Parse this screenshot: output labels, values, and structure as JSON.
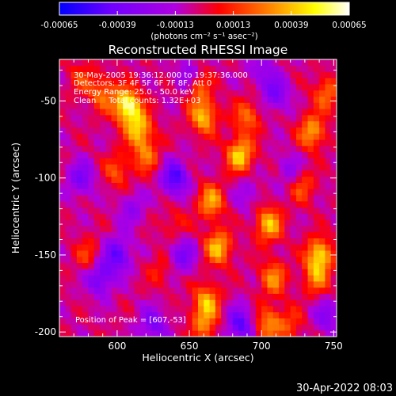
{
  "colorbar": {
    "tick_labels": [
      "-0.00065",
      "-0.00039",
      "-0.00013",
      "0.00013",
      "0.00039",
      "0.00065"
    ],
    "units_label": "(photons cm⁻² s⁻¹ asec⁻²)",
    "range": [
      -0.00065,
      0.00065
    ],
    "colormap": [
      "#0000ff",
      "#7000ff",
      "#b000e0",
      "#ff0000",
      "#ff8000",
      "#ffff00",
      "#ffffff"
    ]
  },
  "chart_data": {
    "type": "heatmap",
    "title": "Reconstructed RHESSI Image",
    "xlabel": "Heliocentric X (arcsec)",
    "ylabel": "Heliocentric Y (arcsec)",
    "xlim": [
      560,
      752
    ],
    "ylim": [
      -203,
      -23
    ],
    "x_ticks": [
      600,
      650,
      700,
      750
    ],
    "y_ticks": [
      -50,
      -100,
      -150,
      -200
    ],
    "x_tick_labels": [
      "600",
      "650",
      "700",
      "750"
    ],
    "y_tick_labels": [
      "-50",
      "-100",
      "-150",
      "-200"
    ],
    "annotations": [
      "30-May-2005 19:36:12.000 to 19:37:36.000",
      "Detectors: 3F 4F 5F 6F 7F 8F, Att 0",
      "Energy Range: 25.0 - 50.0 keV",
      "Clean     Total counts: 1.32E+03"
    ],
    "peak_label": "Position of Peak = [607,-53]",
    "peak": [
      607,
      -53
    ],
    "grid": false,
    "hotspots": [
      {
        "x": 607,
        "y": -53,
        "v": 0.00065
      },
      {
        "x": 615,
        "y": -68,
        "v": 0.00045
      },
      {
        "x": 620,
        "y": -85,
        "v": 0.0003
      },
      {
        "x": 600,
        "y": -95,
        "v": 0.00025
      },
      {
        "x": 590,
        "y": -45,
        "v": 0.0003
      },
      {
        "x": 660,
        "y": -60,
        "v": 0.00045
      },
      {
        "x": 655,
        "y": -40,
        "v": 0.00035
      },
      {
        "x": 665,
        "y": -115,
        "v": 0.0004
      },
      {
        "x": 670,
        "y": -145,
        "v": 0.00045
      },
      {
        "x": 662,
        "y": -180,
        "v": 0.0004
      },
      {
        "x": 660,
        "y": -195,
        "v": 0.0003
      },
      {
        "x": 685,
        "y": -85,
        "v": 0.0005
      },
      {
        "x": 690,
        "y": -60,
        "v": 0.0003
      },
      {
        "x": 705,
        "y": -130,
        "v": 0.00045
      },
      {
        "x": 708,
        "y": -165,
        "v": 0.00035
      },
      {
        "x": 705,
        "y": -195,
        "v": 0.00035
      },
      {
        "x": 735,
        "y": -70,
        "v": 0.0004
      },
      {
        "x": 740,
        "y": -150,
        "v": 0.0005
      },
      {
        "x": 738,
        "y": -165,
        "v": 0.0003
      },
      {
        "x": 745,
        "y": -45,
        "v": 0.0003
      },
      {
        "x": 728,
        "y": -105,
        "v": 0.00025
      },
      {
        "x": 580,
        "y": -150,
        "v": 0.0002
      },
      {
        "x": 575,
        "y": -35,
        "v": 0.00018
      },
      {
        "x": 630,
        "y": -160,
        "v": 0.00015
      },
      {
        "x": 720,
        "y": -195,
        "v": 0.0002
      },
      {
        "x": 640,
        "y": -130,
        "v": 0.00015
      }
    ],
    "coldspots": [
      {
        "x": 600,
        "y": -150,
        "v": -0.0004
      },
      {
        "x": 588,
        "y": -165,
        "v": -0.00035
      },
      {
        "x": 640,
        "y": -100,
        "v": -0.00045
      },
      {
        "x": 645,
        "y": -150,
        "v": -0.0003
      },
      {
        "x": 650,
        "y": -35,
        "v": -0.0003
      },
      {
        "x": 685,
        "y": -195,
        "v": -0.0004
      },
      {
        "x": 710,
        "y": -45,
        "v": -0.0003
      },
      {
        "x": 720,
        "y": -95,
        "v": -0.0002
      },
      {
        "x": 575,
        "y": -100,
        "v": -0.0003
      },
      {
        "x": 625,
        "y": -195,
        "v": -0.0003
      },
      {
        "x": 700,
        "y": -30,
        "v": -0.0002
      },
      {
        "x": 690,
        "y": -110,
        "v": -0.00015
      },
      {
        "x": 745,
        "y": -190,
        "v": -0.00025
      },
      {
        "x": 610,
        "y": -120,
        "v": -0.0002
      }
    ],
    "baseline": -5e-05
  },
  "footer": {
    "timestamp": "30-Apr-2022 08:03"
  }
}
